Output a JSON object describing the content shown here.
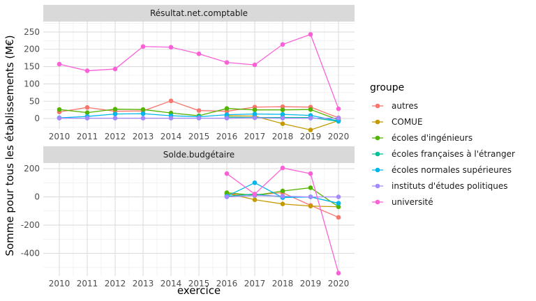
{
  "chart_data": {
    "type": "line",
    "ylabel": "Somme pour tous les établissements (M€)",
    "xlabel": "exercice",
    "x": [
      2010,
      2011,
      2012,
      2013,
      2014,
      2015,
      2016,
      2017,
      2018,
      2019,
      2020
    ],
    "legend": {
      "title": "groupe",
      "position": "right",
      "entries": [
        {
          "name": "autres",
          "color": "#F8766D"
        },
        {
          "name": "COMUE",
          "color": "#C49A00"
        },
        {
          "name": "écoles d'ingénieurs",
          "color": "#53B400"
        },
        {
          "name": "écoles françaises à l'étranger",
          "color": "#00C094"
        },
        {
          "name": "écoles normales supérieures",
          "color": "#00B6EB"
        },
        {
          "name": "instituts d'études politiques",
          "color": "#A58AFF"
        },
        {
          "name": "université",
          "color": "#FB61D7"
        }
      ]
    },
    "grid": true,
    "panels": [
      {
        "title": "Résultat.net.comptable",
        "ylim": [
          -30,
          280
        ],
        "yticks": [
          0,
          50,
          100,
          150,
          200,
          250
        ],
        "series": [
          {
            "name": "autres",
            "color": "#F8766D",
            "values": [
              19,
              32,
              21,
              22,
              51,
              23,
              21,
              33,
              34,
              33,
              2
            ]
          },
          {
            "name": "COMUE",
            "color": "#C49A00",
            "values": [
              null,
              null,
              null,
              null,
              null,
              null,
              8,
              7,
              -15,
              -33,
              -6
            ]
          },
          {
            "name": "écoles d'ingénieurs",
            "color": "#53B400",
            "values": [
              26,
              17,
              27,
              26,
              16,
              8,
              29,
              25,
              25,
              26,
              -4
            ]
          },
          {
            "name": "écoles françaises à l'étranger",
            "color": "#00C094",
            "values": [
              null,
              null,
              null,
              null,
              null,
              null,
              4,
              3,
              3,
              3,
              -8
            ]
          },
          {
            "name": "écoles normales supérieures",
            "color": "#00B6EB",
            "values": [
              2,
              6,
              13,
              14,
              8,
              5,
              11,
              13,
              12,
              9,
              -7
            ]
          },
          {
            "name": "instituts d'études politiques",
            "color": "#A58AFF",
            "values": [
              1,
              1,
              1,
              1,
              1,
              1,
              1,
              2,
              1,
              1,
              1
            ]
          },
          {
            "name": "université",
            "color": "#FB61D7",
            "values": [
              157,
              138,
              143,
              208,
              206,
              187,
              162,
              155,
              214,
              243,
              28
            ]
          }
        ]
      },
      {
        "title": "Solde.budgétaire",
        "ylim": [
          -560,
          240
        ],
        "yticks": [
          -400,
          -200,
          0,
          200
        ],
        "series": [
          {
            "name": "autres",
            "color": "#F8766D",
            "values": [
              null,
              null,
              null,
              null,
              null,
              null,
              20,
              15,
              30,
              -60,
              -145
            ]
          },
          {
            "name": "COMUE",
            "color": "#C49A00",
            "values": [
              null,
              null,
              null,
              null,
              null,
              null,
              25,
              -20,
              -50,
              -65,
              -70
            ]
          },
          {
            "name": "écoles d'ingénieurs",
            "color": "#53B400",
            "values": [
              null,
              null,
              null,
              null,
              null,
              null,
              30,
              10,
              42,
              65,
              -70
            ]
          },
          {
            "name": "écoles françaises à l'étranger",
            "color": "#00C094",
            "values": [
              null,
              null,
              null,
              null,
              null,
              null,
              5,
              20,
              0,
              0,
              -45
            ]
          },
          {
            "name": "écoles normales supérieures",
            "color": "#00B6EB",
            "values": [
              null,
              null,
              null,
              null,
              null,
              null,
              5,
              100,
              -5,
              0,
              -45
            ]
          },
          {
            "name": "instituts d'études politiques",
            "color": "#A58AFF",
            "values": [
              null,
              null,
              null,
              null,
              null,
              null,
              0,
              10,
              5,
              0,
              0
            ]
          },
          {
            "name": "université",
            "color": "#FB61D7",
            "values": [
              null,
              null,
              null,
              null,
              null,
              null,
              165,
              20,
              205,
              165,
              -540
            ]
          }
        ]
      }
    ]
  }
}
